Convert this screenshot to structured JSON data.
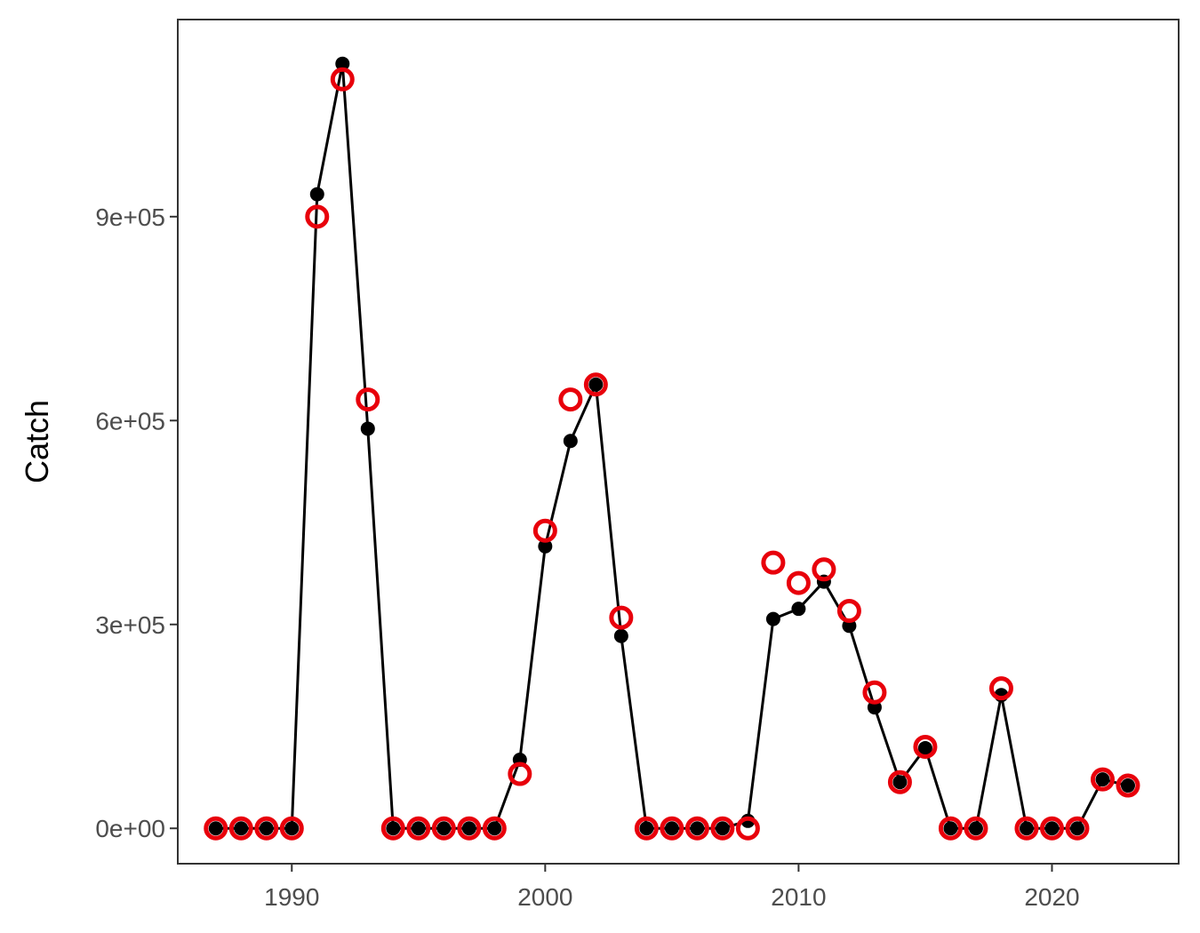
{
  "chart_data": {
    "type": "line",
    "title": "",
    "xlabel": "",
    "ylabel": "Catch",
    "xlim": [
      1985.5,
      2025
    ],
    "ylim": [
      -52000,
      1190000
    ],
    "x_ticks": [
      1990,
      2000,
      2010,
      2020
    ],
    "x_tick_labels": [
      "1990",
      "2000",
      "2010",
      "2020"
    ],
    "y_ticks": [
      0,
      300000,
      600000,
      900000
    ],
    "y_tick_labels": [
      "0e+00",
      "3e+05",
      "6e+05",
      "9e+05"
    ],
    "grid": false,
    "legend": "none",
    "colors": {
      "observed": "#000000",
      "predicted": "#e8000b",
      "frame": "#333333"
    },
    "series": [
      {
        "style": "line-with-points",
        "color": "#000000",
        "x": [
          1987,
          1988,
          1989,
          1990,
          1991,
          1992,
          1993,
          1994,
          1995,
          1996,
          1997,
          1998,
          1999,
          2000,
          2001,
          2002,
          2003,
          2004,
          2005,
          2006,
          2007,
          2008,
          2009,
          2010,
          2011,
          2012,
          2013,
          2014,
          2015,
          2016,
          2017,
          2018,
          2019,
          2020,
          2021,
          2022,
          2023
        ],
        "values": [
          0,
          0,
          0,
          0,
          933000,
          1125000,
          588000,
          0,
          0,
          0,
          0,
          0,
          101000,
          415000,
          570000,
          653000,
          283000,
          0,
          0,
          0,
          0,
          11000,
          308000,
          323000,
          363000,
          298000,
          178000,
          68000,
          118000,
          0,
          0,
          196000,
          0,
          0,
          0,
          72000,
          63000
        ]
      },
      {
        "style": "open-circles",
        "color": "#e8000b",
        "x": [
          1987,
          1988,
          1989,
          1990,
          1991,
          1992,
          1993,
          1994,
          1995,
          1996,
          1997,
          1998,
          1999,
          2000,
          2001,
          2002,
          2003,
          2004,
          2005,
          2006,
          2007,
          2008,
          2009,
          2010,
          2011,
          2012,
          2013,
          2014,
          2015,
          2016,
          2017,
          2018,
          2019,
          2020,
          2021,
          2022,
          2023
        ],
        "values": [
          0,
          0,
          0,
          0,
          900000,
          1102000,
          631000,
          0,
          0,
          0,
          0,
          0,
          80000,
          438000,
          631000,
          653000,
          310000,
          0,
          0,
          0,
          0,
          0,
          391000,
          361000,
          381000,
          320000,
          200000,
          68000,
          120000,
          0,
          0,
          206000,
          0,
          0,
          0,
          72000,
          63000
        ]
      }
    ]
  }
}
